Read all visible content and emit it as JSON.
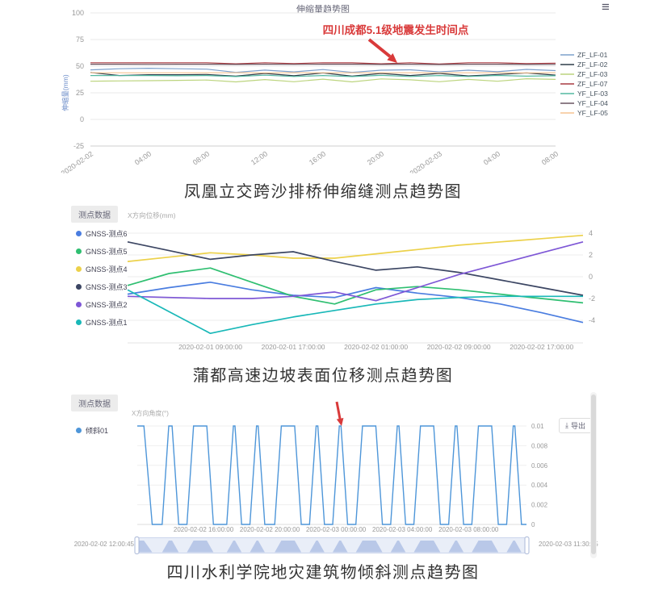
{
  "icons": {
    "menu": "≡",
    "export": "⤓"
  },
  "captions": {
    "c1": "凤凰立交跨沙排桥伸缩缝测点趋势图",
    "c2": "蒲都高速边坡表面位移测点趋势图",
    "c3": "四川水利学院地灾建筑物倾斜测点趋势图"
  },
  "chart_data": [
    {
      "type": "line",
      "title": "伸缩量趋势图",
      "annotation": "四川成都5.1级地震发生时间点",
      "ylabel": "伸缩量(mm)",
      "ylim": [
        -25,
        100
      ],
      "yticks": [
        100,
        75,
        50,
        25,
        0,
        -25
      ],
      "x_tick_labels": [
        "2020-02-02",
        "04:00",
        "08:00",
        "12:00",
        "16:00",
        "20:00",
        "2020-02-03",
        "04:00",
        "08:00"
      ],
      "legend_position": "right",
      "series": [
        {
          "name": "ZF_LF-01",
          "color": "#7da0cc",
          "values": [
            46.5,
            47.6,
            48.0,
            47.6,
            47.2,
            44.2,
            46.3,
            44.6,
            46.8,
            44.2,
            46.2,
            46.6,
            44.6,
            46.2,
            44.8,
            47.0,
            45.8
          ]
        },
        {
          "name": "ZF_LF-02",
          "color": "#2e3d49",
          "values": [
            44.0,
            41.2,
            42.0,
            42.0,
            42.2,
            40.6,
            43.2,
            41.0,
            43.6,
            40.6,
            43.2,
            41.2,
            43.2,
            40.8,
            42.2,
            43.6,
            41.6
          ]
        },
        {
          "name": "ZF_LF-03",
          "color": "#bcd47e",
          "values": [
            35.8,
            36.1,
            36.4,
            36.7,
            37.0,
            35.2,
            37.4,
            35.4,
            37.8,
            35.2,
            38.0,
            37.2,
            35.4,
            37.6,
            35.8,
            38.2,
            37.6
          ]
        },
        {
          "name": "ZF_LF-07",
          "color": "#a93a40",
          "values": [
            53.2,
            53.2,
            53.1,
            53.2,
            53.2,
            52.2,
            53.2,
            52.4,
            53.2,
            53.1,
            52.2,
            53.2,
            52.0,
            53.2,
            53.2,
            52.4,
            52.8
          ]
        },
        {
          "name": "YF_LF-03",
          "color": "#53b9a0",
          "values": [
            41.2,
            41.1,
            41.2,
            41.0,
            41.2,
            40.2,
            41.5,
            40.3,
            41.2,
            40.2,
            41.4,
            40.3,
            41.2,
            40.3,
            41.3,
            40.6,
            41.0
          ]
        },
        {
          "name": "YF_LF-04",
          "color": "#6a5560",
          "values": [
            51.8,
            51.8,
            51.7,
            51.8,
            51.8,
            51.6,
            51.8,
            51.7,
            51.8,
            51.8,
            51.6,
            51.8,
            51.5,
            51.8,
            51.8,
            51.6,
            51.7
          ]
        },
        {
          "name": "YF_LF-05",
          "color": "#f6c392",
          "values": [
            43.8,
            43.8,
            43.7,
            43.8,
            43.8,
            43.8,
            43.7,
            43.8,
            43.8,
            43.7,
            43.8,
            43.8,
            43.7,
            43.8,
            43.8,
            43.7,
            43.8
          ]
        }
      ]
    },
    {
      "type": "line",
      "panel_tab": "测点数据",
      "axis_title": "X方向位移(mm)",
      "ylim": [
        -6,
        4.6
      ],
      "yticks": [
        4,
        2,
        0,
        -2,
        -4
      ],
      "x_tick_labels": [
        "2020-02-01 09:00:00",
        "2020-02-01 17:00:00",
        "2020-02-02 01:00:00",
        "2020-02-02 09:00:00",
        "2020-02-02 17:00:00"
      ],
      "legend_position": "left",
      "series": [
        {
          "name": "GNSS-测点6",
          "color": "#4a7de0",
          "values": [
            -1.6,
            -1.0,
            -0.5,
            -1.2,
            -1.7,
            -1.9,
            -1.0,
            -1.5,
            -1.9,
            -2.5,
            -3.3,
            -4.2
          ]
        },
        {
          "name": "GNSS-测点5",
          "color": "#2fbf71",
          "values": [
            -0.8,
            0.3,
            0.8,
            -0.5,
            -1.8,
            -2.5,
            -1.2,
            -0.9,
            -1.2,
            -1.6,
            -2.0,
            -2.4
          ]
        },
        {
          "name": "GNSS-测点4",
          "color": "#ecd14a",
          "values": [
            1.4,
            1.8,
            2.2,
            2.0,
            1.7,
            1.7,
            2.1,
            2.5,
            2.9,
            3.2,
            3.5,
            3.8
          ]
        },
        {
          "name": "GNSS-测点3",
          "color": "#3c4663",
          "values": [
            3.2,
            2.4,
            1.6,
            2.0,
            2.3,
            1.4,
            0.6,
            0.9,
            0.4,
            -0.3,
            -1.0,
            -1.7
          ]
        },
        {
          "name": "GNSS-测点2",
          "color": "#7e57d6",
          "values": [
            -1.8,
            -1.9,
            -2.0,
            -2.0,
            -1.8,
            -1.4,
            -2.2,
            -1.0,
            0.2,
            1.2,
            2.2,
            3.2
          ]
        },
        {
          "name": "GNSS-测点1",
          "color": "#19b8b8",
          "values": [
            -1.2,
            -3.2,
            -5.2,
            -4.4,
            -3.7,
            -3.1,
            -2.5,
            -2.1,
            -1.9,
            -1.8,
            -1.8,
            -1.8
          ]
        }
      ]
    },
    {
      "type": "line",
      "panel_tab": "测点数据",
      "axis_title": "X方向角度(°)",
      "export_label": "导出",
      "yticks": [
        "0.01",
        "0.008",
        "0.006",
        "0.004",
        "0.002",
        "0"
      ],
      "ylim": [
        0,
        0.01
      ],
      "span_hours": 23.5,
      "x_ticks": [
        {
          "t": 4,
          "label": "2020-02-02 16:00:00"
        },
        {
          "t": 8,
          "label": "2020-02-02 20:00:00"
        },
        {
          "t": 12,
          "label": "2020-02-03 00:00:00"
        },
        {
          "t": 16,
          "label": "2020-02-03 04:00:00"
        },
        {
          "t": 20,
          "label": "2020-02-03 08:00:00"
        }
      ],
      "slider": {
        "start_label": "2020-02-02 12:00:45",
        "end_label": "2020-02-03 11:30:45"
      },
      "series": [
        {
          "name": "倾斜01",
          "color": "#4e96d9",
          "points": [
            [
              0,
              0.01
            ],
            [
              0.4,
              0.01
            ],
            [
              0.9,
              0
            ],
            [
              1.5,
              0
            ],
            [
              1.9,
              0.01
            ],
            [
              2.1,
              0.01
            ],
            [
              2.5,
              0
            ],
            [
              3,
              0
            ],
            [
              3.4,
              0.01
            ],
            [
              4.2,
              0.01
            ],
            [
              4.6,
              0
            ],
            [
              5.4,
              0
            ],
            [
              5.8,
              0.01
            ],
            [
              5.9,
              0.01
            ],
            [
              6.3,
              0
            ],
            [
              6.8,
              0
            ],
            [
              7.2,
              0.01
            ],
            [
              7.3,
              0.01
            ],
            [
              7.7,
              0
            ],
            [
              8.3,
              0
            ],
            [
              8.7,
              0.01
            ],
            [
              9.5,
              0.01
            ],
            [
              9.9,
              0
            ],
            [
              10.4,
              0
            ],
            [
              10.8,
              0.01
            ],
            [
              10.9,
              0.01
            ],
            [
              11.3,
              0
            ],
            [
              11.8,
              0
            ],
            [
              12.2,
              0.01
            ],
            [
              12.3,
              0.01
            ],
            [
              12.7,
              0
            ],
            [
              13.2,
              0
            ],
            [
              13.6,
              0.01
            ],
            [
              14.4,
              0.01
            ],
            [
              14.8,
              0
            ],
            [
              15.3,
              0
            ],
            [
              15.7,
              0.01
            ],
            [
              15.8,
              0.01
            ],
            [
              16.2,
              0
            ],
            [
              16.7,
              0
            ],
            [
              17.1,
              0.01
            ],
            [
              17.9,
              0.01
            ],
            [
              18.3,
              0
            ],
            [
              18.8,
              0
            ],
            [
              19.2,
              0.01
            ],
            [
              19.3,
              0.01
            ],
            [
              19.7,
              0
            ],
            [
              20.2,
              0
            ],
            [
              20.6,
              0.01
            ],
            [
              21.4,
              0.01
            ],
            [
              21.8,
              0
            ],
            [
              22.3,
              0
            ],
            [
              22.7,
              0.01
            ],
            [
              22.8,
              0.01
            ],
            [
              23.2,
              0
            ],
            [
              23.5,
              0
            ]
          ]
        }
      ]
    }
  ]
}
